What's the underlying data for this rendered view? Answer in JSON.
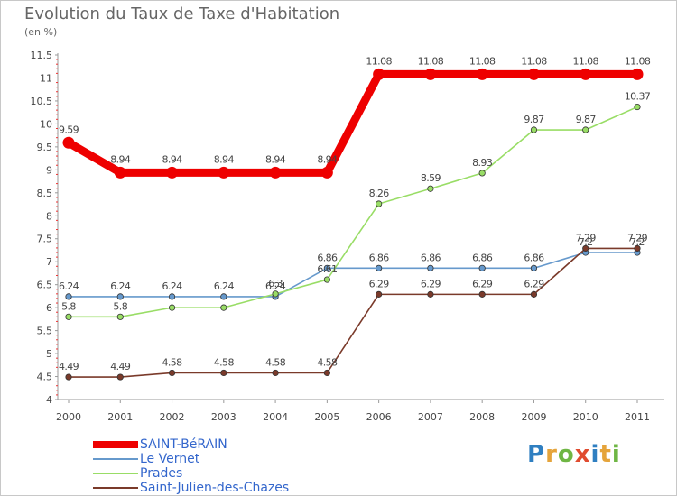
{
  "title": "Evolution du Taux de Taxe d'Habitation",
  "unit": "(en %)",
  "logo": {
    "text": "Proxiti",
    "letter_colors": [
      "#2f7fc1",
      "#e5a43b",
      "#6fb644",
      "#e04b2f",
      "#2f7fc1",
      "#e5a43b",
      "#6fb644"
    ]
  },
  "chart_data": {
    "type": "line",
    "x": [
      "2000",
      "2001",
      "2002",
      "2003",
      "2004",
      "2005",
      "2006",
      "2007",
      "2008",
      "2009",
      "2010",
      "2011"
    ],
    "ylim": [
      4,
      11.5
    ],
    "yticks": [
      "4",
      "4.5",
      "5",
      "5.5",
      "6",
      "6.5",
      "7",
      "7.5",
      "8",
      "8.5",
      "9",
      "9.5",
      "10",
      "10.5",
      "11",
      "11.5"
    ],
    "grid": false,
    "legend_position": "bottom-left",
    "series": [
      {
        "name": "SAINT-BéRAIN",
        "color": "#ee0000",
        "emphasis": true,
        "values": [
          9.59,
          8.94,
          8.94,
          8.94,
          8.94,
          8.94,
          11.08,
          11.08,
          11.08,
          11.08,
          11.08,
          11.08
        ],
        "labels": [
          "9.59",
          "8.94",
          "8.94",
          "8.94",
          "8.94",
          "8.94",
          "11.08",
          "11.08",
          "11.08",
          "11.08",
          "11.08",
          "11.08"
        ]
      },
      {
        "name": "Le Vernet",
        "color": "#6699cc",
        "emphasis": false,
        "values": [
          6.24,
          6.24,
          6.24,
          6.24,
          6.24,
          6.86,
          6.86,
          6.86,
          6.86,
          6.86,
          7.2,
          7.2
        ],
        "labels": [
          "6.24",
          "6.24",
          "6.24",
          "6.24",
          "6.24",
          "6.86",
          "6.86",
          "6.86",
          "6.86",
          "6.86",
          "7.2",
          "7.2"
        ]
      },
      {
        "name": "Prades",
        "color": "#99dd66",
        "emphasis": false,
        "values": [
          5.8,
          5.8,
          6,
          6,
          6.3,
          6.61,
          8.26,
          8.59,
          8.93,
          9.87,
          9.87,
          10.37
        ],
        "labels": [
          "5.8",
          "5.8",
          "",
          "",
          "6.3",
          "6.61",
          "8.26",
          "8.59",
          "8.93",
          "9.87",
          "9.87",
          "10.37"
        ]
      },
      {
        "name": "Saint-Julien-des-Chazes",
        "color": "#7a3a2a",
        "emphasis": false,
        "values": [
          4.49,
          4.49,
          4.58,
          4.58,
          4.58,
          4.58,
          6.29,
          6.29,
          6.29,
          6.29,
          7.29,
          7.29
        ],
        "labels": [
          "4.49",
          "4.49",
          "4.58",
          "4.58",
          "4.58",
          "4.58",
          "6.29",
          "6.29",
          "6.29",
          "6.29",
          "7.29",
          "7.29"
        ]
      }
    ]
  }
}
